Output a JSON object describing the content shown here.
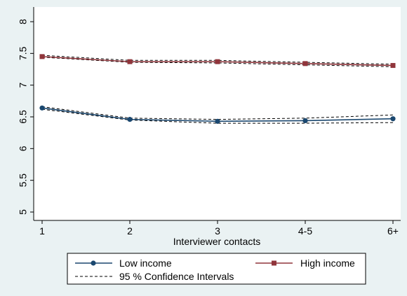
{
  "chart_data": {
    "type": "line",
    "xlabel": "Interviewer contacts",
    "ylabel": "",
    "categories": [
      "1",
      "2",
      "3",
      "4-5",
      "6+"
    ],
    "ylim": [
      5,
      8
    ],
    "yticks": [
      "5",
      "5.5",
      "6",
      "6.5",
      "7",
      "7.5",
      "8"
    ],
    "grid": false,
    "legend_position": "bottom",
    "series": [
      {
        "name": "Low income",
        "color": "#1a476f",
        "marker": "circle",
        "values": [
          6.64,
          6.46,
          6.43,
          6.44,
          6.47
        ],
        "ci_lower": [
          6.62,
          6.45,
          6.4,
          6.4,
          6.41
        ],
        "ci_upper": [
          6.66,
          6.48,
          6.46,
          6.48,
          6.53
        ]
      },
      {
        "name": "High income",
        "color": "#90353b",
        "marker": "square",
        "values": [
          7.45,
          7.37,
          7.37,
          7.34,
          7.31
        ],
        "ci_lower": [
          7.44,
          7.36,
          7.35,
          7.32,
          7.29
        ],
        "ci_upper": [
          7.47,
          7.39,
          7.39,
          7.36,
          7.33
        ]
      }
    ],
    "ci_legend_label": "95 % Confidence Intervals"
  }
}
